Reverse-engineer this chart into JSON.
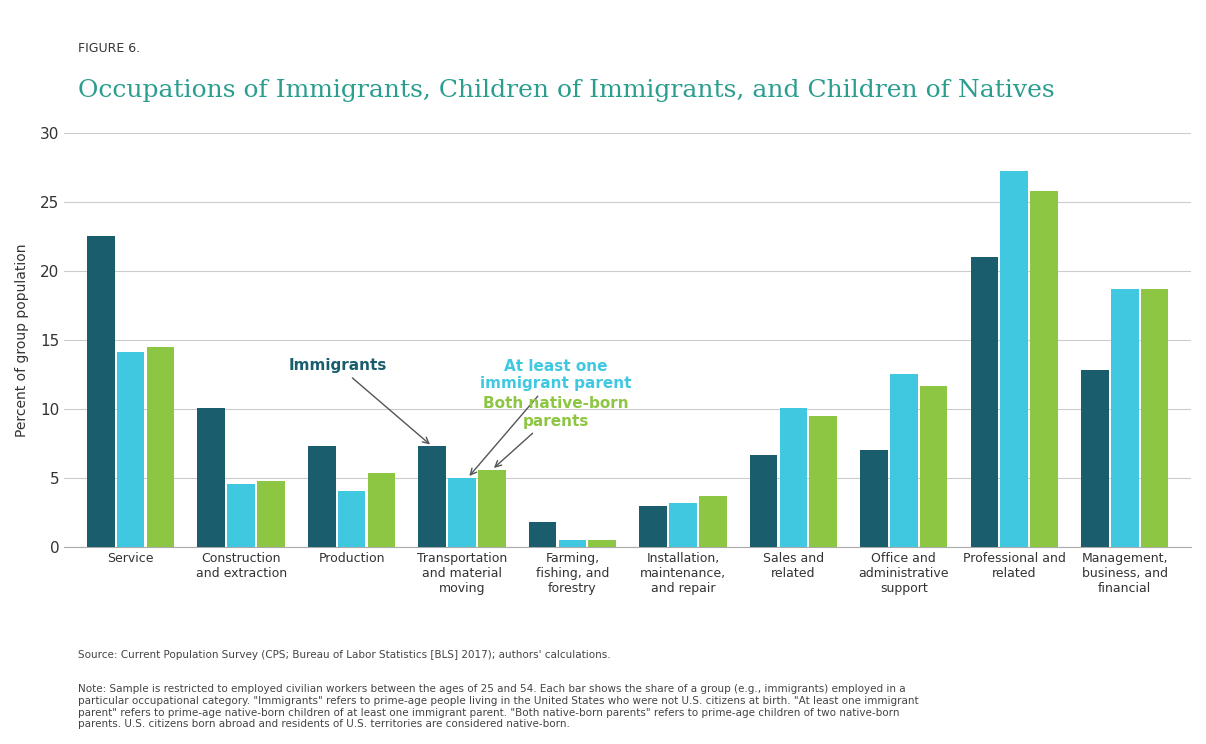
{
  "title": "Occupations of Immigrants, Children of Immigrants, and Children of Natives",
  "figure_label": "FIGURE 6.",
  "ylabel": "Percent of group population",
  "categories": [
    "Service",
    "Construction\nand extraction",
    "Production",
    "Transportation\nand material\nmoving",
    "Farming,\nfishing, and\nforestry",
    "Installation,\nmaintenance,\nand repair",
    "Sales and\nrelated",
    "Office and\nadministrative\nsupport",
    "Professional and\nrelated",
    "Management,\nbusiness, and\nfinancial"
  ],
  "series": {
    "immigrants": [
      22.5,
      10.1,
      7.3,
      7.3,
      1.8,
      3.0,
      6.7,
      7.0,
      21.0,
      12.8
    ],
    "at_least_one": [
      14.1,
      4.6,
      4.1,
      5.0,
      0.5,
      3.2,
      10.1,
      12.5,
      27.2,
      18.7
    ],
    "both_native": [
      14.5,
      4.8,
      5.4,
      5.6,
      0.5,
      3.7,
      9.5,
      11.7,
      25.8,
      18.7
    ]
  },
  "colors": {
    "immigrants": "#1a5e6e",
    "at_least_one": "#40c8e0",
    "both_native": "#8dc642"
  },
  "legend_labels": {
    "immigrants": "Immigrants",
    "at_least_one": "At least one\nimmigrant parent",
    "both_native": "Both native-born\nparents"
  },
  "ylim": [
    0,
    30
  ],
  "yticks": [
    0,
    5,
    10,
    15,
    20,
    25,
    30
  ],
  "background_color": "#ffffff",
  "title_color": "#2a9d8f",
  "figure_label_color": "#333333",
  "annotation_arrow_color": "#333333",
  "source_text": "Source: Current Population Survey (CPS; Bureau of Labor Statistics [BLS] 2017); authors' calculations.",
  "note_text": "Note: Sample is restricted to employed civilian workers between the ages of 25 and 54. Each bar shows the share of a group (e.g., immigrants) employed in a\nparticular occupational category. \"Immigrants\" refers to prime-age people living in the United States who were not U.S. citizens at birth. \"At least one immigrant\nparent\" refers to prime-age native-born children of at least one immigrant parent. \"Both native-born parents\" refers to prime-age children of two native-born\nparents. U.S. citizens born abroad and residents of U.S. territories are considered native-born."
}
